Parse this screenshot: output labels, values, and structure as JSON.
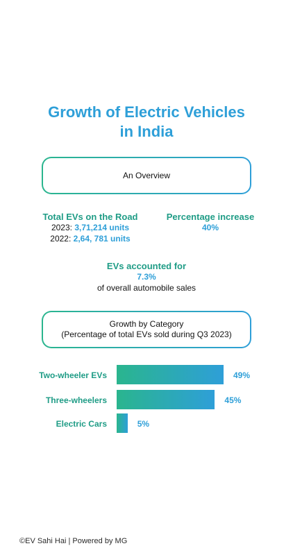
{
  "title_line1": "Growth of Electric Vehicles",
  "title_line2": "in India",
  "overview_label": "An Overview",
  "total_evs": {
    "label": "Total EVs on the Road",
    "year_2023": "2023:",
    "value_2023": "3,71,214 units",
    "year_2022": "2022:",
    "value_2022": "2,64, 781 units"
  },
  "percentage_increase": {
    "label": "Percentage increase",
    "value": "40%"
  },
  "evs_share": {
    "label": "EVs accounted for",
    "value": "7.3%",
    "suffix": "of overall automobile sales"
  },
  "category_box": {
    "line1": "Growth by Category",
    "line2": "(Percentage of total EVs sold during Q3 2023)"
  },
  "chart_data": {
    "type": "bar",
    "orientation": "horizontal",
    "categories": [
      "Two-wheeler EVs",
      "Three-wheelers",
      "Electric Cars"
    ],
    "values": [
      49,
      45,
      5
    ],
    "value_labels": [
      "49%",
      "45%",
      "5%"
    ],
    "title": "",
    "xlabel": "",
    "ylabel": "",
    "xlim": [
      0,
      49
    ],
    "grid": false,
    "legend": "none"
  },
  "colors": {
    "accent_blue": "#2e9fd8",
    "accent_green": "#2ab58e",
    "label_green": "#1f9c86"
  },
  "footer": "©EV Sahi Hai | Powered by MG"
}
